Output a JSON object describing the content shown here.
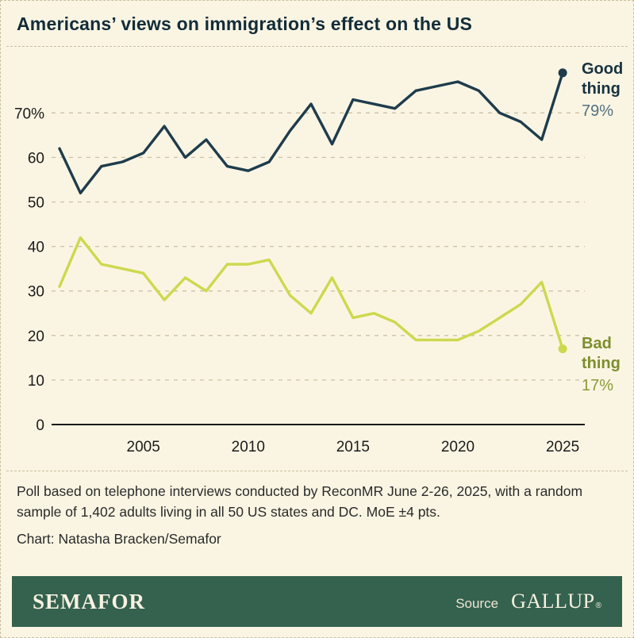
{
  "title": "Americans’ views on immigration’s effect on the US",
  "chart_data": {
    "type": "line",
    "x": [
      2001,
      2002,
      2003,
      2004,
      2005,
      2006,
      2007,
      2008,
      2009,
      2010,
      2011,
      2012,
      2013,
      2014,
      2015,
      2016,
      2017,
      2018,
      2019,
      2020,
      2021,
      2022,
      2023,
      2024,
      2025
    ],
    "series": [
      {
        "name": "Good thing",
        "values": [
          62,
          52,
          58,
          59,
          61,
          67,
          60,
          64,
          58,
          57,
          59,
          66,
          72,
          63,
          73,
          72,
          71,
          75,
          76,
          77,
          75,
          70,
          68,
          64,
          79
        ],
        "color": "#1e3c4c",
        "label_color": "#16323f",
        "value_color": "#52707e",
        "end_value_label": "79%"
      },
      {
        "name": "Bad thing",
        "values": [
          31,
          42,
          36,
          35,
          34,
          28,
          33,
          30,
          36,
          36,
          37,
          29,
          25,
          33,
          24,
          25,
          23,
          19,
          19,
          19,
          21,
          24,
          27,
          32,
          17
        ],
        "color": "#ccd94e",
        "label_color": "#7d8e2d",
        "value_color": "#8a9b35",
        "end_value_label": "17%"
      }
    ],
    "xticks": [
      2005,
      2010,
      2015,
      2020,
      2025
    ],
    "yticks": [
      {
        "v": 0,
        "label": "0"
      },
      {
        "v": 10,
        "label": "10"
      },
      {
        "v": 20,
        "label": "20"
      },
      {
        "v": 30,
        "label": "30"
      },
      {
        "v": 40,
        "label": "40"
      },
      {
        "v": 50,
        "label": "50"
      },
      {
        "v": 60,
        "label": "60"
      },
      {
        "v": 70,
        "label": "70%"
      }
    ],
    "ylim": [
      0,
      80
    ],
    "grid": "horizontal-dashed",
    "grid_color": "#cbc2a4",
    "axis_color": "#1a1a1a",
    "legend_position": "right-of-line-ends"
  },
  "footnote": {
    "text": "Poll based on telephone interviews conducted by ReconMR June 2-26, 2025, with a random sample of 1,402 adults living in all 50 US states and DC. MoE ±4 pts.",
    "credit": "Chart: Natasha Bracken/Semafor"
  },
  "footer": {
    "brand": "SEMAFOR",
    "source_label": "Source",
    "source_name": "GALLUP",
    "registered": "®",
    "background": "#35614f"
  },
  "colors": {
    "background": "#faf5e3",
    "border": "#c9bfa0",
    "title": "#122c39"
  }
}
